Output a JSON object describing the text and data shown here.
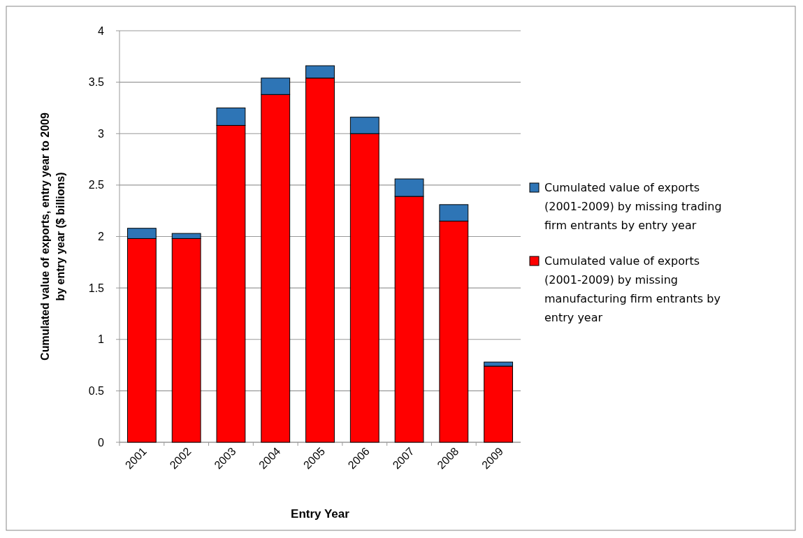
{
  "chart_data": {
    "type": "bar",
    "stacked": true,
    "xlabel": "Entry Year",
    "ylabel": "Cumulated value of exports, entry year to 2009 by entry year ($ billions)",
    "categories": [
      "2001",
      "2002",
      "2003",
      "2004",
      "2005",
      "2006",
      "2007",
      "2008",
      "2009"
    ],
    "series": [
      {
        "name": "Cumulated value of exports (2001-2009) by missing manufacturing firm entrants by entry year",
        "color": "#ff0000",
        "values": [
          1.98,
          1.98,
          3.08,
          3.38,
          3.54,
          3.0,
          2.39,
          2.15,
          0.74
        ]
      },
      {
        "name": "Cumulated value of exports (2001-2009) by missing trading firm entrants by entry year",
        "color": "#2e75b6",
        "values": [
          0.1,
          0.05,
          0.17,
          0.16,
          0.12,
          0.16,
          0.17,
          0.16,
          0.04
        ]
      }
    ],
    "ylim": [
      0,
      4
    ],
    "yticks": [
      0,
      0.5,
      1,
      1.5,
      2,
      2.5,
      3,
      3.5,
      4
    ],
    "grid": "y",
    "legend": "right"
  }
}
